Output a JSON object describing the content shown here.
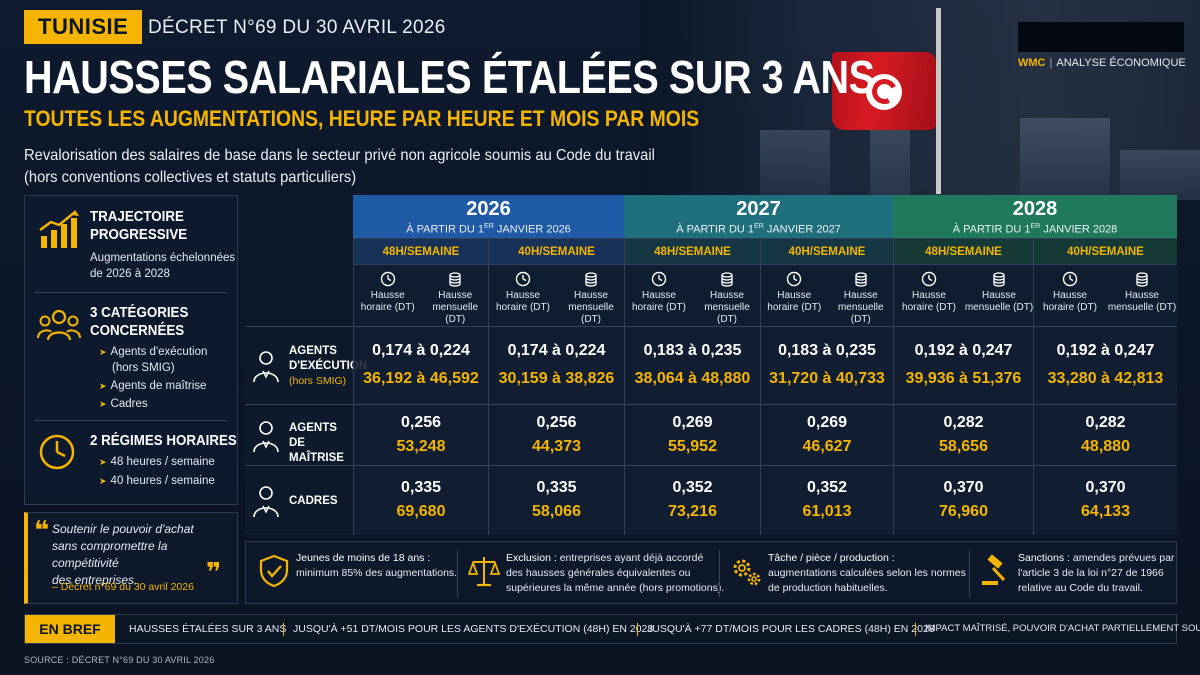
{
  "header": {
    "country_tag": "TUNISIE",
    "decree": "DÉCRET N°69 DU 30 AVRIL 2026",
    "brand_name": "WMC",
    "brand_tagline": "ANALYSE ÉCONOMIQUE",
    "title": "HAUSSES SALARIALES ÉTALÉES SUR 3 ANS",
    "subtitle": "TOUTES LES AUGMENTATIONS, HEURE PAR HEURE ET MOIS PAR MOIS",
    "description_line1": "Revalorisation des salaires de base dans le secteur privé non agricole soumis au Code du travail",
    "description_line2": "(hors conventions collectives et statuts particuliers)"
  },
  "left_panel": {
    "trajectory": {
      "icon": "chart-growth-icon",
      "title_line1": "TRAJECTOIRE",
      "title_line2": "PROGRESSIVE",
      "text_line1": "Augmentations échelonnées",
      "text_line2": "de 2026 à 2028"
    },
    "categories": {
      "icon": "people-group-icon",
      "title_line1": "3 CATÉGORIES",
      "title_line2": "CONCERNÉES",
      "items": [
        "Agents d'exécution",
        "(hors SMIG)",
        "Agents de maîtrise",
        "Cadres"
      ]
    },
    "regimes": {
      "icon": "clock-icon",
      "title_line1": "2 RÉGIMES HORAIRES",
      "items": [
        "48 heures / semaine",
        "40 heures / semaine"
      ]
    }
  },
  "quote": {
    "text_line1": "Soutenir le pouvoir d'achat",
    "text_line2": "sans compromettre la compétitivité",
    "text_line3": "des entreprises.",
    "source": "– Décret n°69 du 30 avril 2026"
  },
  "table": {
    "years": [
      {
        "year": "2026",
        "from_prefix": "À PARTIR DU 1",
        "from_sup": "ER",
        "from_suffix": " JANVIER 2026"
      },
      {
        "year": "2027",
        "from_prefix": "À PARTIR DU 1",
        "from_sup": "ER",
        "from_suffix": " JANVIER 2027"
      },
      {
        "year": "2028",
        "from_prefix": "À PARTIR DU 1",
        "from_sup": "ER",
        "from_suffix": " JANVIER 2028"
      }
    ],
    "regime_labels": [
      "48H/SEMAINE",
      "40H/SEMAINE"
    ],
    "sub_labels": {
      "hourly_line1": "Hausse",
      "hourly_line2": "horaire (DT)",
      "monthly_line1": "Hausse",
      "monthly_line2": "mensuelle (DT)"
    },
    "rows": [
      {
        "label_line1": "AGENTS",
        "label_line2": "D'EXÉCUTION",
        "label_note": "(hors SMIG)",
        "hourly": [
          "0,174 à 0,224",
          "0,174 à 0,224",
          "0,183 à 0,235",
          "0,183 à 0,235",
          "0,192 à 0,247",
          "0,192 à 0,247"
        ],
        "monthly": [
          "36,192 à 46,592",
          "30,159 à 38,826",
          "38,064 à 48,880",
          "31,720 à 40,733",
          "39,936 à 51,376",
          "33,280 à 42,813"
        ]
      },
      {
        "label_line1": "AGENTS DE",
        "label_line2": "MAÎTRISE",
        "label_note": "",
        "hourly": [
          "0,256",
          "0,256",
          "0,269",
          "0,269",
          "0,282",
          "0,282"
        ],
        "monthly": [
          "53,248",
          "44,373",
          "55,952",
          "46,627",
          "58,656",
          "48,880"
        ]
      },
      {
        "label_line1": "CADRES",
        "label_line2": "",
        "label_note": "",
        "hourly": [
          "0,335",
          "0,335",
          "0,352",
          "0,352",
          "0,370",
          "0,370"
        ],
        "monthly": [
          "69,680",
          "58,066",
          "73,216",
          "61,013",
          "76,960",
          "64,133"
        ]
      }
    ]
  },
  "notes": [
    {
      "icon": "shield-check-icon",
      "title": "Jeunes de moins de 18 ans :",
      "line1": "",
      "line2": "minimum 85% des augmentations.",
      "line3": ""
    },
    {
      "icon": "scales-icon",
      "title": "Exclusion :",
      "line1": " entreprises ayant déjà accordé",
      "line2": "des hausses générales équivalentes ou",
      "line3": "supérieures la même année (hors promotions)."
    },
    {
      "icon": "gears-icon",
      "title": "Tâche / pièce / production :",
      "line1": "",
      "line2": "augmentations calculées selon les normes",
      "line3": "de production habituelles."
    },
    {
      "icon": "gavel-icon",
      "title": "Sanctions :",
      "line1": " amendes prévues par",
      "line2": "l'article 3 de la loi n°27 de 1966",
      "line3": "relative au Code du travail."
    }
  ],
  "bref": {
    "tag": "EN BREF",
    "items": [
      "HAUSSES ÉTALÉES SUR 3 ANS",
      "JUSQU'À +51 DT/MOIS POUR LES AGENTS D'EXÉCUTION (48H) EN 2028",
      "JUSQU'À +77 DT/MOIS POUR LES CADRES (48H) EN 2028",
      "IMPACT MAÎTRISÉ, POUVOIR D'ACHAT PARTIELLEMENT SOUTENU"
    ]
  },
  "source": "SOURCE : DÉCRET N°69 DU 30 AVRIL 2026",
  "colors": {
    "accent": "#f4b400",
    "year_2026": "#1f5aa6",
    "year_2027": "#1f6f7d",
    "year_2028": "#1f7a5c",
    "background": "#0b1627"
  }
}
